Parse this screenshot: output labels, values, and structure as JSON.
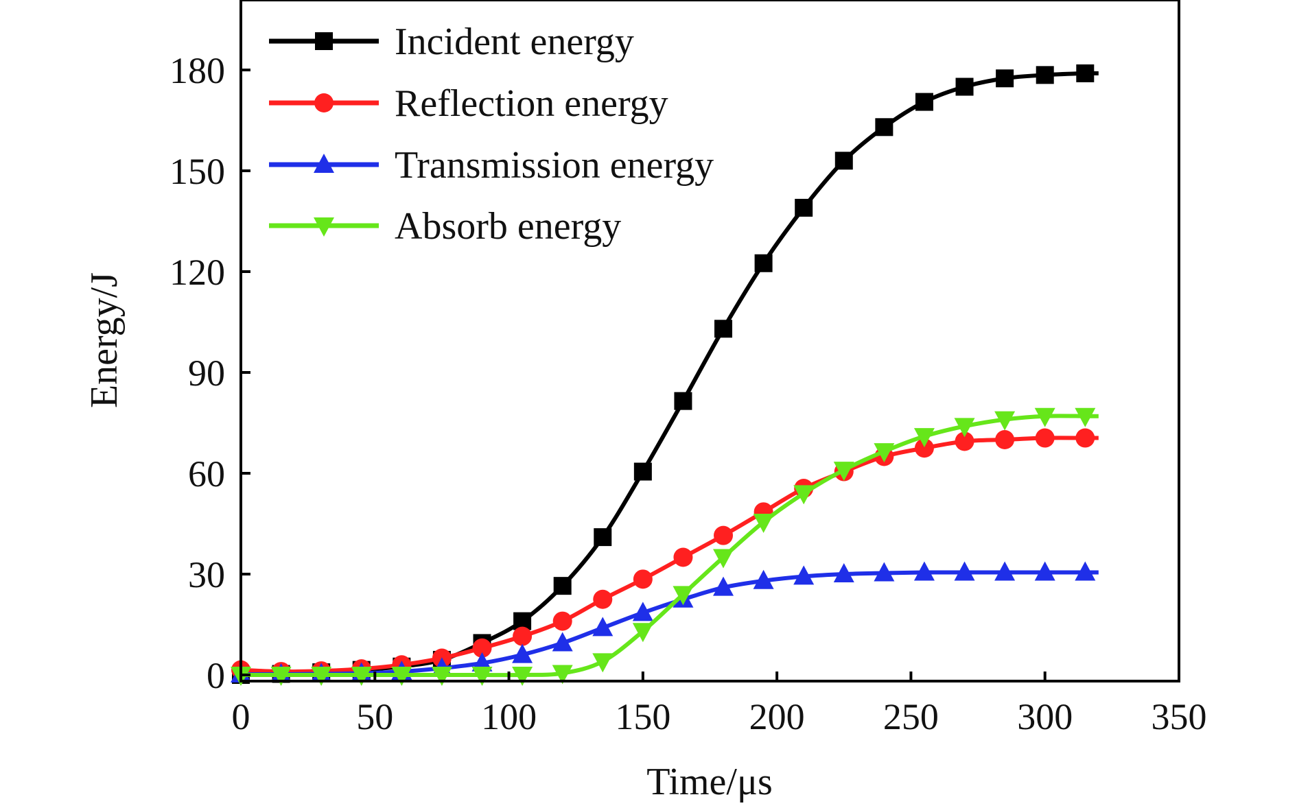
{
  "chart_data": {
    "type": "line",
    "title": "",
    "xlabel": "Time/μs",
    "ylabel": "Energy/J",
    "xlim": [
      0,
      350
    ],
    "ylim": [
      0,
      200
    ],
    "xticks": [
      0,
      50,
      100,
      150,
      200,
      250,
      300,
      350
    ],
    "yticks": [
      0,
      30,
      60,
      90,
      120,
      150,
      180
    ],
    "grid": false,
    "legend": "top-left",
    "x": [
      0,
      15,
      30,
      45,
      60,
      75,
      90,
      105,
      120,
      135,
      150,
      165,
      180,
      195,
      210,
      225,
      240,
      255,
      270,
      285,
      300,
      315
    ],
    "x_end": 320,
    "series": [
      {
        "name": "Incident energy",
        "color": "#000000",
        "marker": "square",
        "values": [
          0,
          0.3,
          0.8,
          1.5,
          2.5,
          4.5,
          9.5,
          16,
          26.5,
          41,
          60.5,
          81.5,
          103,
          122.5,
          139,
          153,
          163,
          170.5,
          175,
          177.5,
          178.5,
          179
        ],
        "end_value": 179
      },
      {
        "name": "Reflection energy",
        "color": "#ff2020",
        "marker": "circle",
        "values": [
          1.5,
          1,
          1.2,
          1.8,
          3,
          5,
          8,
          11.5,
          16,
          22.5,
          28.5,
          35,
          41.5,
          48.5,
          55.5,
          60.5,
          65,
          67.5,
          69.5,
          70,
          70.5,
          70.5
        ],
        "end_value": 70.5
      },
      {
        "name": "Transmission energy",
        "color": "#1f2fe8",
        "marker": "triangle-up",
        "values": [
          0.2,
          0.2,
          0.3,
          0.5,
          1,
          2,
          3.5,
          6,
          9.5,
          14,
          18.5,
          22.5,
          26,
          28,
          29.3,
          30,
          30.3,
          30.5,
          30.5,
          30.5,
          30.5,
          30.5
        ],
        "end_value": 30.5
      },
      {
        "name": "Absorb energy",
        "color": "#66e61a",
        "marker": "triangle-down",
        "values": [
          0,
          0,
          0,
          0,
          0,
          0,
          0,
          0,
          0.5,
          4,
          13,
          24,
          35,
          45.5,
          54,
          61,
          66.5,
          71,
          74,
          76,
          77,
          77
        ],
        "end_value": 77
      }
    ]
  }
}
